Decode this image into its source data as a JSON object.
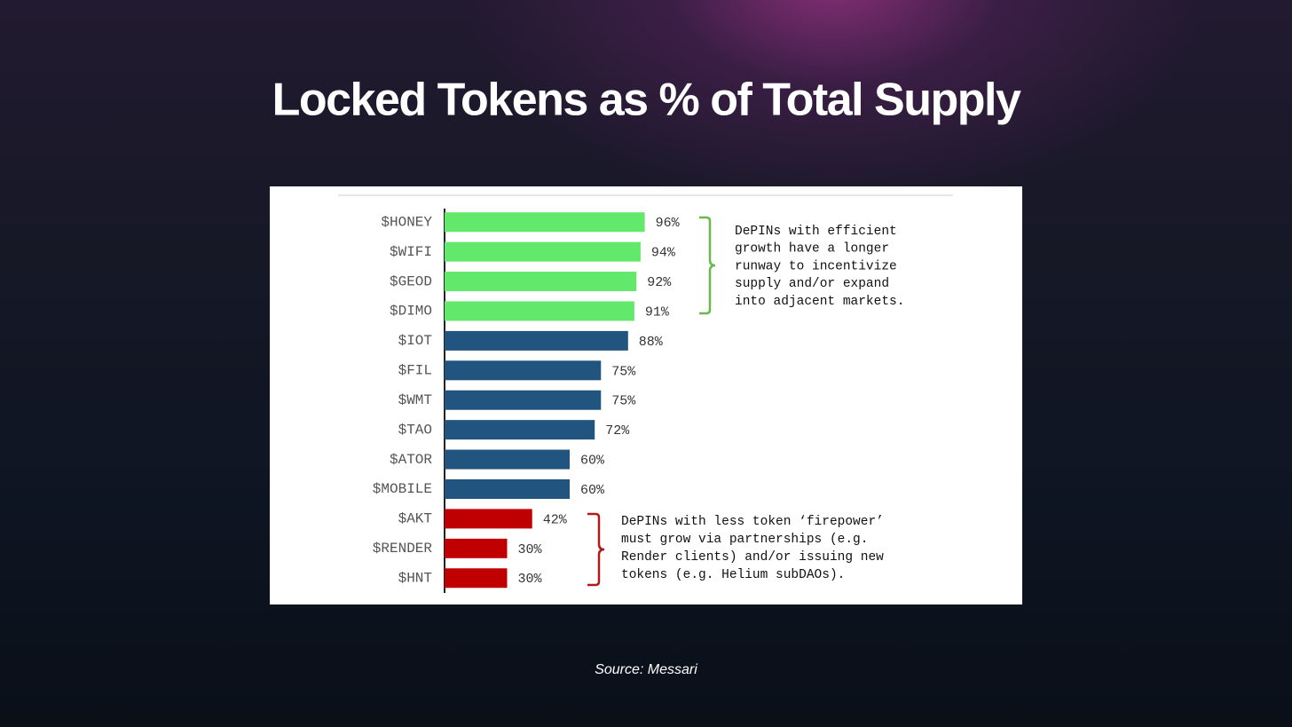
{
  "chart_data": {
    "type": "hbar",
    "title": "Locked Tokens as % of Total Supply",
    "source": "Source: Messari",
    "categories": [
      "$HONEY",
      "$WIFI",
      "$GEOD",
      "$DIMO",
      "$IOT",
      "$FIL",
      "$WMT",
      "$TAO",
      "$ATOR",
      "$MOBILE",
      "$AKT",
      "$RENDER",
      "$HNT"
    ],
    "values": [
      96,
      94,
      92,
      91,
      88,
      75,
      75,
      72,
      60,
      60,
      42,
      30,
      30
    ],
    "value_labels": [
      "96%",
      "94%",
      "92%",
      "91%",
      "88%",
      "75%",
      "75%",
      "72%",
      "60%",
      "60%",
      "42%",
      "30%",
      "30%"
    ],
    "colors": [
      "#62e86a",
      "#62e86a",
      "#62e86a",
      "#62e86a",
      "#21547f",
      "#21547f",
      "#21547f",
      "#21547f",
      "#21547f",
      "#21547f",
      "#c00000",
      "#c00000",
      "#c00000"
    ],
    "xlim": [
      0,
      100
    ],
    "annotations": [
      {
        "lines": [
          "DePINs with efficient",
          "growth have a longer",
          "runway to incentivize",
          "supply and/or expand",
          "into adjacent markets."
        ],
        "color": "#6ab84f"
      },
      {
        "lines": [
          "DePINs with less token ‘firepower’",
          "must grow via partnerships (e.g.",
          "Render clients) and/or issuing new",
          "tokens (e.g. Helium subDAOs)."
        ],
        "color": "#b01a1a"
      }
    ]
  }
}
